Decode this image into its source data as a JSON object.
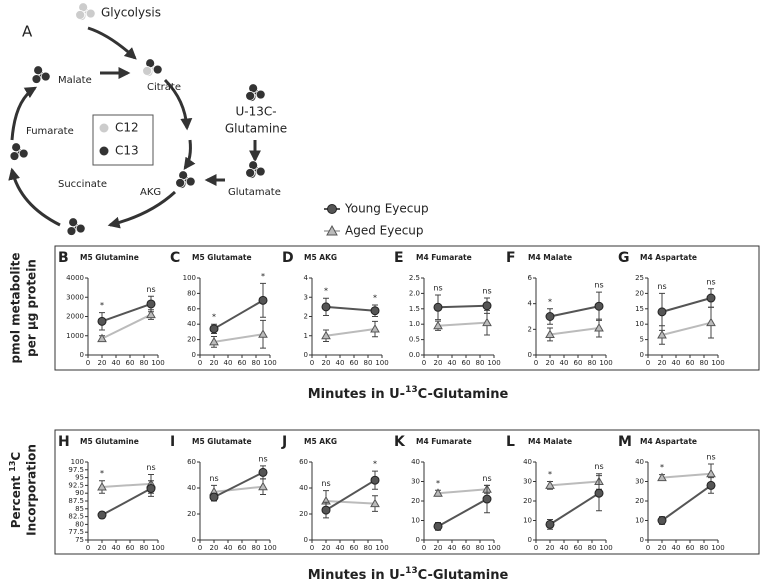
{
  "diagram": {
    "panel": "A",
    "glycolysis": "Glycolysis",
    "citrate": "Citrate",
    "malate": "Malate",
    "fumarate": "Fumarate",
    "succinate": "Succinate",
    "akg": "AKG",
    "glutamate": "Glutamate",
    "tracer": [
      "U-13C-",
      "Glutamine"
    ],
    "key": [
      "C12",
      "C13"
    ]
  },
  "legend": {
    "names": [
      "Young Eyecup",
      "Aged Eyecup"
    ],
    "colors": [
      "#555555",
      "#bbbbbb"
    ]
  },
  "rows": [
    {
      "ylabel": {
        "line1": "pmol metabolite",
        "line2": "per µg protein"
      },
      "xlabel": {
        "before": "Minutes in U-",
        "sup": "13",
        "after": "C-Glutamine"
      }
    },
    {
      "ylabel": {
        "before": "Percent ",
        "sup": "13",
        "after": "C",
        "line2": "Incorporation"
      },
      "xlabel": {
        "before": "Minutes in U-",
        "sup": "13",
        "after": "C-Glutamine"
      }
    }
  ],
  "chart_data": [
    {
      "type": "line",
      "panel": "B",
      "title": "M5 Glutamine",
      "x": [
        20,
        90
      ],
      "xlim": [
        0,
        100
      ],
      "xticks": [
        0,
        20,
        40,
        60,
        80,
        100
      ],
      "ylim": [
        0,
        4000
      ],
      "yticks": [
        0,
        1000,
        2000,
        3000,
        4000
      ],
      "series": [
        {
          "color": "#555555",
          "values": [
            1750,
            2650
          ],
          "errors": [
            450,
            400
          ]
        },
        {
          "color": "#bbbbbb",
          "values": [
            850,
            2100
          ],
          "errors": [
            150,
            250
          ]
        }
      ],
      "annotations": [
        "*",
        "ns"
      ]
    },
    {
      "type": "line",
      "panel": "C",
      "title": "M5 Glutamate",
      "x": [
        20,
        90
      ],
      "xlim": [
        0,
        100
      ],
      "xticks": [
        0,
        20,
        40,
        60,
        80,
        100
      ],
      "ylim": [
        0,
        100
      ],
      "yticks": [
        0,
        20,
        40,
        60,
        80,
        100
      ],
      "series": [
        {
          "color": "#555555",
          "values": [
            34,
            71
          ],
          "errors": [
            6,
            22
          ]
        },
        {
          "color": "#bbbbbb",
          "values": [
            17,
            27
          ],
          "errors": [
            7,
            18
          ]
        }
      ],
      "annotations": [
        "*",
        "*"
      ]
    },
    {
      "type": "line",
      "panel": "D",
      "title": "M5 AKG",
      "x": [
        20,
        90
      ],
      "xlim": [
        0,
        100
      ],
      "xticks": [
        0,
        20,
        40,
        60,
        80,
        100
      ],
      "ylim": [
        0,
        4
      ],
      "yticks": [
        0,
        1,
        2,
        3,
        4
      ],
      "series": [
        {
          "color": "#555555",
          "values": [
            2.5,
            2.3
          ],
          "errors": [
            0.45,
            0.3
          ]
        },
        {
          "color": "#bbbbbb",
          "values": [
            1.0,
            1.35
          ],
          "errors": [
            0.3,
            0.4
          ]
        }
      ],
      "annotations": [
        "*",
        "*"
      ]
    },
    {
      "type": "line",
      "panel": "E",
      "title": "M4 Fumarate",
      "x": [
        20,
        90
      ],
      "xlim": [
        0,
        100
      ],
      "xticks": [
        0,
        20,
        40,
        60,
        80,
        100
      ],
      "ylim": [
        0,
        2.5
      ],
      "yticks": [
        {
          "value": 0,
          "label": "0.0"
        },
        0.5,
        {
          "value": 1,
          "label": "1.0"
        },
        1.5,
        {
          "value": 2,
          "label": "2.0"
        },
        2.5
      ],
      "series": [
        {
          "color": "#555555",
          "values": [
            1.55,
            1.6
          ],
          "errors": [
            0.4,
            0.25
          ]
        },
        {
          "color": "#bbbbbb",
          "values": [
            0.95,
            1.05
          ],
          "errors": [
            0.15,
            0.4
          ]
        }
      ],
      "annotations": [
        "ns",
        "ns"
      ]
    },
    {
      "type": "line",
      "panel": "F",
      "title": "M4 Malate",
      "x": [
        20,
        90
      ],
      "xlim": [
        0,
        100
      ],
      "xticks": [
        0,
        20,
        40,
        60,
        80,
        100
      ],
      "ylim": [
        0,
        6
      ],
      "yticks": [
        0,
        2,
        4,
        6
      ],
      "series": [
        {
          "color": "#555555",
          "values": [
            3.0,
            3.8
          ],
          "errors": [
            0.6,
            1.1
          ]
        },
        {
          "color": "#bbbbbb",
          "values": [
            1.6,
            2.1
          ],
          "errors": [
            0.5,
            0.7
          ]
        }
      ],
      "annotations": [
        "*",
        "ns"
      ]
    },
    {
      "type": "line",
      "panel": "G",
      "title": "M4 Aspartate",
      "x": [
        20,
        90
      ],
      "xlim": [
        0,
        100
      ],
      "xticks": [
        0,
        20,
        40,
        60,
        80,
        100
      ],
      "ylim": [
        0,
        25
      ],
      "yticks": [
        0,
        5,
        10,
        15,
        20,
        25
      ],
      "series": [
        {
          "color": "#555555",
          "values": [
            14,
            18.5
          ],
          "errors": [
            6,
            3
          ]
        },
        {
          "color": "#bbbbbb",
          "values": [
            6.5,
            10.5
          ],
          "errors": [
            3,
            5
          ]
        }
      ],
      "annotations": [
        "ns",
        "ns"
      ]
    },
    {
      "type": "line",
      "panel": "H",
      "title": "M5 Glutamine",
      "x": [
        20,
        90
      ],
      "xlim": [
        0,
        100
      ],
      "xticks": [
        0,
        20,
        40,
        60,
        80,
        100
      ],
      "ylim": [
        75,
        100
      ],
      "yticks": [
        75,
        77.5,
        80,
        82.5,
        85,
        87.5,
        90,
        92.5,
        95,
        97.5,
        100
      ],
      "series": [
        {
          "color": "#555555",
          "values": [
            83,
            91.5
          ],
          "errors": [
            1,
            2.5
          ]
        },
        {
          "color": "#bbbbbb",
          "values": [
            92,
            93
          ],
          "errors": [
            2,
            3
          ]
        }
      ],
      "annotations": [
        "*",
        "ns"
      ]
    },
    {
      "type": "line",
      "panel": "I",
      "title": "M5 Glutamate",
      "x": [
        20,
        90
      ],
      "xlim": [
        0,
        100
      ],
      "xticks": [
        0,
        20,
        40,
        60,
        80,
        100
      ],
      "ylim": [
        0,
        60
      ],
      "yticks": [
        0,
        20,
        40,
        60
      ],
      "series": [
        {
          "color": "#555555",
          "values": [
            33,
            52
          ],
          "errors": [
            3,
            5
          ]
        },
        {
          "color": "#bbbbbb",
          "values": [
            37,
            41
          ],
          "errors": [
            5,
            6
          ]
        }
      ],
      "annotations": [
        "ns",
        "ns"
      ]
    },
    {
      "type": "line",
      "panel": "J",
      "title": "M5 AKG",
      "x": [
        20,
        90
      ],
      "xlim": [
        0,
        100
      ],
      "xticks": [
        0,
        20,
        40,
        60,
        80,
        100
      ],
      "ylim": [
        0,
        60
      ],
      "yticks": [
        0,
        20,
        40,
        60
      ],
      "series": [
        {
          "color": "#555555",
          "values": [
            23,
            46
          ],
          "errors": [
            6,
            7
          ]
        },
        {
          "color": "#bbbbbb",
          "values": [
            30,
            28
          ],
          "errors": [
            8,
            6
          ]
        }
      ],
      "annotations": [
        "ns",
        "*"
      ]
    },
    {
      "type": "line",
      "panel": "K",
      "title": "M4 Fumarate",
      "x": [
        20,
        90
      ],
      "xlim": [
        0,
        100
      ],
      "xticks": [
        0,
        20,
        40,
        60,
        80,
        100
      ],
      "ylim": [
        0,
        40
      ],
      "yticks": [
        0,
        10,
        20,
        30,
        40
      ],
      "series": [
        {
          "color": "#555555",
          "values": [
            7,
            21
          ],
          "errors": [
            2,
            7
          ]
        },
        {
          "color": "#bbbbbb",
          "values": [
            24,
            26
          ],
          "errors": [
            1.5,
            2
          ]
        }
      ],
      "annotations": [
        "*",
        "ns"
      ]
    },
    {
      "type": "line",
      "panel": "L",
      "title": "M4 Malate",
      "x": [
        20,
        90
      ],
      "xlim": [
        0,
        100
      ],
      "xticks": [
        0,
        20,
        40,
        60,
        80,
        100
      ],
      "ylim": [
        0,
        40
      ],
      "yticks": [
        0,
        10,
        20,
        30,
        40
      ],
      "series": [
        {
          "color": "#555555",
          "values": [
            8,
            24
          ],
          "errors": [
            2.5,
            9
          ]
        },
        {
          "color": "#bbbbbb",
          "values": [
            28,
            30
          ],
          "errors": [
            2,
            4
          ]
        }
      ],
      "annotations": [
        "*",
        "ns"
      ]
    },
    {
      "type": "line",
      "panel": "M",
      "title": "M4 Aspartate",
      "x": [
        20,
        90
      ],
      "xlim": [
        0,
        100
      ],
      "xticks": [
        0,
        20,
        40,
        60,
        80,
        100
      ],
      "ylim": [
        0,
        40
      ],
      "yticks": [
        0,
        10,
        20,
        30,
        40
      ],
      "series": [
        {
          "color": "#555555",
          "values": [
            10,
            28
          ],
          "errors": [
            2,
            4
          ]
        },
        {
          "color": "#bbbbbb",
          "values": [
            32,
            34
          ],
          "errors": [
            1.5,
            5
          ]
        }
      ],
      "annotations": [
        "*",
        "ns"
      ]
    }
  ]
}
